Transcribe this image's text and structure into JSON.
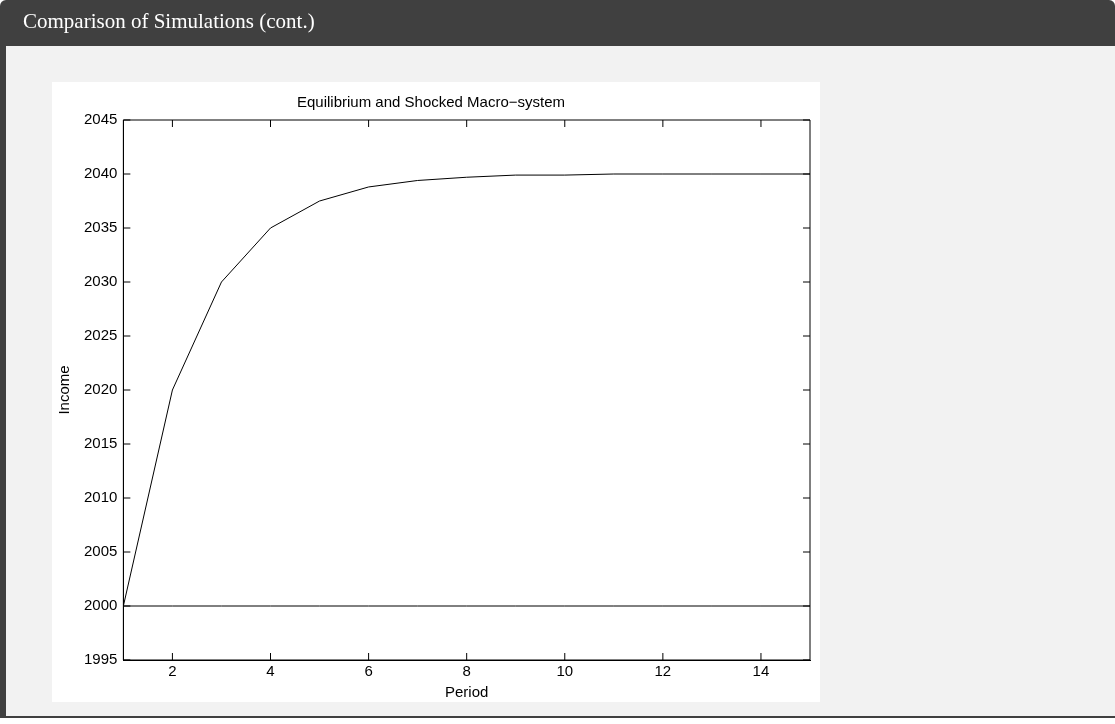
{
  "chart_data": {
    "type": "line",
    "title": "Equilibrium and Shocked Macro−system",
    "xlabel": "Period",
    "ylabel": "Income",
    "annotations": [
      "Comparison of Simulations (cont.)"
    ],
    "x": [
      1,
      2,
      3,
      4,
      5,
      6,
      7,
      8,
      9,
      10,
      11,
      12,
      13,
      14,
      15
    ],
    "series": [
      {
        "color": "#000000",
        "values": [
          2000,
          2020,
          2030,
          2035,
          2037.5,
          2038.8,
          2039.4,
          2039.7,
          2039.9,
          2039.9,
          2040,
          2040,
          2040,
          2040,
          2040
        ]
      },
      {
        "color": "#000000",
        "values": [
          2000,
          2000,
          2000,
          2000,
          2000,
          2000,
          2000,
          2000,
          2000,
          2000,
          2000,
          2000,
          2000,
          2000,
          2000
        ]
      }
    ],
    "xlim": [
      1,
      15
    ],
    "xticks": [
      2,
      4,
      6,
      8,
      10,
      12,
      14
    ],
    "ylim": [
      1995,
      2045
    ],
    "yticks": [
      1995,
      2000,
      2005,
      2010,
      2015,
      2020,
      2025,
      2030,
      2035,
      2040,
      2045
    ],
    "grid": false,
    "legend": false,
    "marker": "none",
    "line_style": "solid"
  }
}
